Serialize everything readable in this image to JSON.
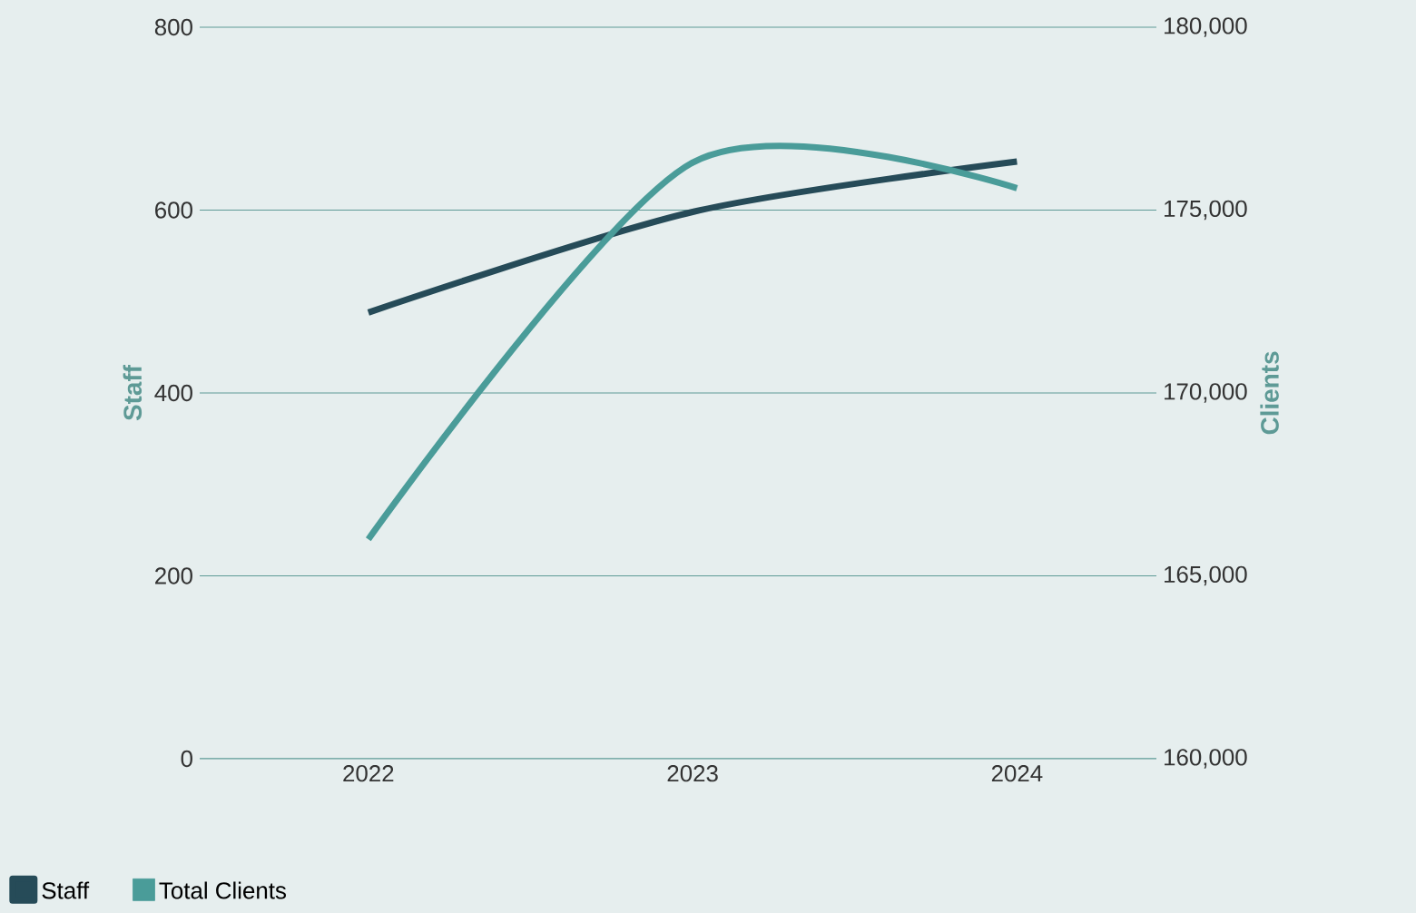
{
  "chart_data": {
    "type": "line",
    "xlabel": null,
    "ylabel": "Staff",
    "y2label": "Clients",
    "categories": [
      "2022",
      "2023",
      "2024"
    ],
    "series": [
      {
        "name": "Staff",
        "color": "#264b58",
        "values": [
          488,
          598,
          653
        ]
      },
      {
        "name": "Total Clients",
        "color": "#4a9c99",
        "values": [
          166000,
          176300,
          175600
        ],
        "axis": "y2"
      }
    ],
    "ylim": [
      0,
      800
    ],
    "yticks": [
      0,
      200,
      400,
      600,
      800
    ],
    "y2lim": [
      160000,
      180000
    ],
    "y2ticks": [
      {
        "value": 160000,
        "label": "160,000"
      },
      {
        "value": 165000,
        "label": "165,000"
      },
      {
        "value": 170000,
        "label": "170,000"
      },
      {
        "value": 175000,
        "label": "175,000"
      },
      {
        "value": 180000,
        "label": "180,000"
      }
    ],
    "grid": "y",
    "legend": "bottom left",
    "marker": "none",
    "line_style": "solid"
  }
}
